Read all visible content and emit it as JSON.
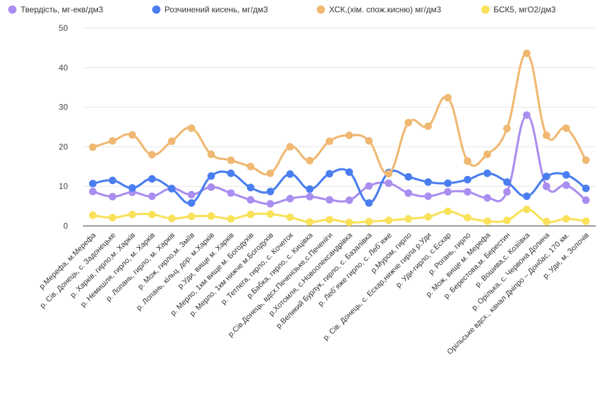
{
  "chart_data": {
    "type": "line",
    "title": "",
    "xlabel": "",
    "ylabel": "",
    "ylim": [
      0,
      50
    ],
    "yticks": [
      0,
      10,
      20,
      30,
      40,
      50
    ],
    "grid": true,
    "legend": "top",
    "categories": [
      "р.Мерефа, м.Мерефа",
      "р. Сів. Донець, с. Задонецьке",
      "р. Харків, гирло,м. Харків",
      "р. Немишля, гирло, м. Харків",
      "р. Лопань, гирло, м. Харків",
      "р. Мож, гирло,м. Зміїв",
      "р. Лопань, кільц. дор. м.Харків",
      "р.Уди, вище м. Харків",
      "р. Мерло, 1км вище м. Богодухів",
      "р. Мерло, 1км нижче м.Богодухів",
      "р. Тетлега, гирло, с. Кочеток",
      "р.Бабка, гирло, с. Кицівка",
      "р.Сів.Донець, вдсх.Печенізьке,с.Печеніги",
      "р.Хотомля, с.Новоолександрівка",
      "р.Великий Бурлук, гирло, с. Базалівка",
      "р. Леб´яже гирло, с. Леб´яже",
      "р.Муром, гирло",
      "р. Сів. Донець, с. Есхар,нижче гирла р.Уди",
      "р. Уди-гирло, с.Есхар",
      "р. Рогань, гирло",
      "р. Мож, вище м. Мерефа",
      "р. Берестова,м. Берестин",
      "р. Вошива,с. Козіївка",
      "р. Орілька, с. Червона Долина",
      "Орільське вдсх., канал Дніпро – Донбас, 170 км.",
      "р. Уди, м. Золочів"
    ],
    "series": [
      {
        "name": "Твердість, мг-екв/дм3",
        "color": "#a98ef0",
        "values": [
          8.7,
          7.4,
          8.5,
          7.5,
          9.5,
          7.9,
          9.8,
          8.3,
          6.6,
          5.6,
          6.9,
          7.4,
          6.6,
          6.5,
          10.1,
          10.8,
          8.3,
          7.5,
          8.6,
          8.6,
          7.1,
          8.6,
          28.0,
          10.0,
          10.3,
          6.5
        ]
      },
      {
        "name": "Розчинений кисень, мг/дм3",
        "color": "#4a7ef0",
        "values": [
          10.7,
          11.5,
          9.6,
          11.9,
          9.4,
          5.8,
          12.6,
          13.3,
          9.7,
          8.7,
          13.1,
          9.3,
          13.2,
          13.6,
          5.8,
          13.5,
          12.4,
          11.1,
          10.8,
          11.7,
          13.3,
          11.1,
          7.5,
          12.5,
          12.9,
          9.5
        ]
      },
      {
        "name": "ХСК,(хім. спож.кисню) мг/дм3",
        "color": "#f0b872",
        "values": [
          19.9,
          21.5,
          23.0,
          18.0,
          21.4,
          24.7,
          18.1,
          16.6,
          15.0,
          13.3,
          20.0,
          16.5,
          21.4,
          22.9,
          21.5,
          13.2,
          26.1,
          25.2,
          32.4,
          16.4,
          18.1,
          24.6,
          43.6,
          22.9,
          24.7,
          16.6
        ]
      },
      {
        "name": "БСК5, мгО2/дм3",
        "color": "#f9e15a",
        "values": [
          2.7,
          2.1,
          2.9,
          2.9,
          1.9,
          2.4,
          2.5,
          1.8,
          2.9,
          3.0,
          2.2,
          1.0,
          1.6,
          0.9,
          1.1,
          1.4,
          1.8,
          2.3,
          3.7,
          2.1,
          1.2,
          1.4,
          4.2,
          1.1,
          1.8,
          1.2
        ]
      }
    ]
  }
}
